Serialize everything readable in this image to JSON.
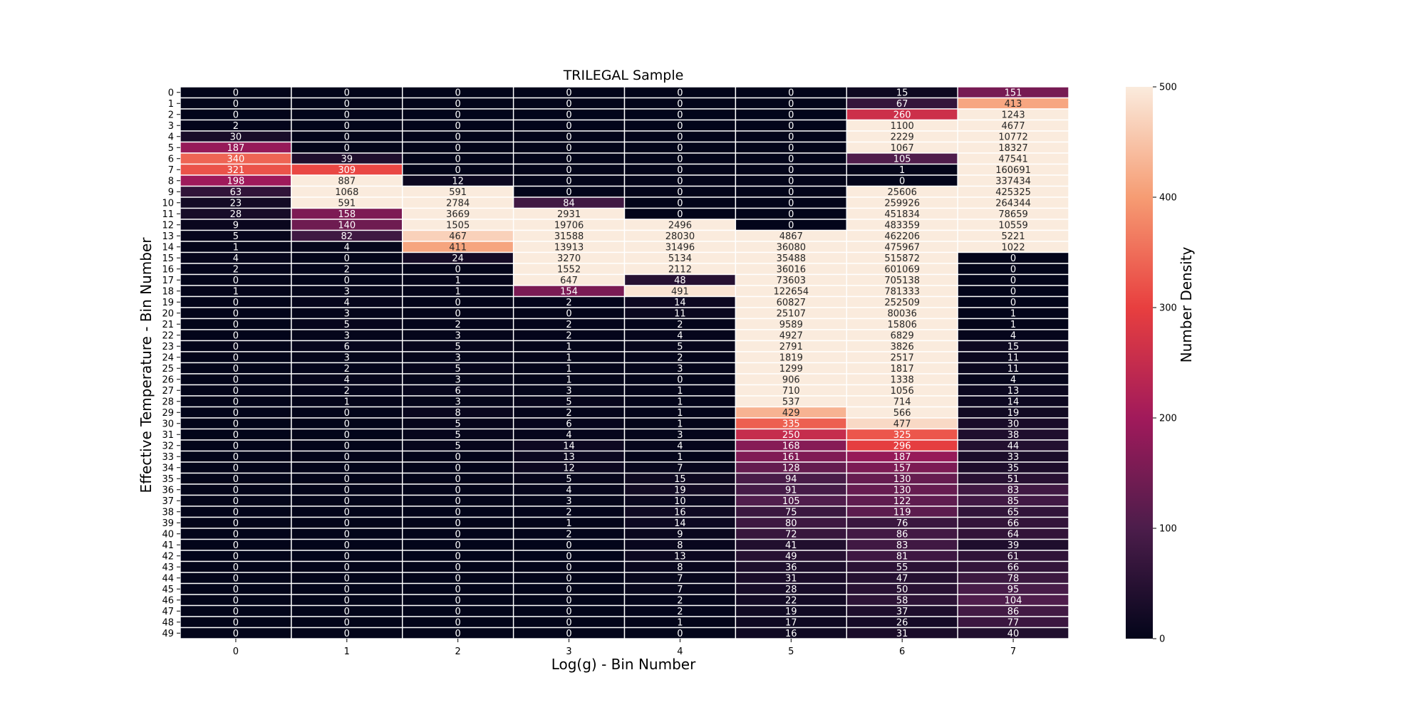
{
  "chart_data": {
    "type": "heatmap",
    "title": "TRILEGAL Sample",
    "xlabel": "Log(g) - Bin Number",
    "ylabel": "Effective Temperature - Bin Number",
    "x_categories": [
      "0",
      "1",
      "2",
      "3",
      "4",
      "5",
      "6",
      "7"
    ],
    "y_categories": [
      "0",
      "1",
      "2",
      "3",
      "4",
      "5",
      "6",
      "7",
      "8",
      "9",
      "10",
      "11",
      "12",
      "13",
      "14",
      "15",
      "16",
      "17",
      "18",
      "19",
      "20",
      "21",
      "22",
      "23",
      "24",
      "25",
      "26",
      "27",
      "28",
      "29",
      "30",
      "31",
      "32",
      "33",
      "34",
      "35",
      "36",
      "37",
      "38",
      "39",
      "40",
      "41",
      "42",
      "43",
      "44",
      "45",
      "46",
      "47",
      "48",
      "49"
    ],
    "values": [
      [
        0,
        0,
        0,
        0,
        0,
        0,
        15,
        151
      ],
      [
        0,
        0,
        0,
        0,
        0,
        0,
        67,
        413
      ],
      [
        0,
        0,
        0,
        0,
        0,
        0,
        260,
        1243
      ],
      [
        2,
        0,
        0,
        0,
        0,
        0,
        1100,
        4677
      ],
      [
        30,
        0,
        0,
        0,
        0,
        0,
        2229,
        10772
      ],
      [
        187,
        0,
        0,
        0,
        0,
        0,
        1067,
        18327
      ],
      [
        340,
        39,
        0,
        0,
        0,
        0,
        105,
        47541
      ],
      [
        321,
        309,
        0,
        0,
        0,
        0,
        1,
        160691
      ],
      [
        198,
        887,
        12,
        0,
        0,
        0,
        0,
        337434
      ],
      [
        63,
        1068,
        591,
        0,
        0,
        0,
        25606,
        425325
      ],
      [
        23,
        591,
        2784,
        84,
        0,
        0,
        259926,
        264344
      ],
      [
        28,
        158,
        3669,
        2931,
        0,
        0,
        451834,
        78659
      ],
      [
        9,
        140,
        1505,
        19706,
        2496,
        0,
        483359,
        10559
      ],
      [
        5,
        82,
        467,
        31588,
        28030,
        4867,
        462206,
        5221
      ],
      [
        1,
        4,
        411,
        13913,
        31496,
        36080,
        475967,
        1022
      ],
      [
        4,
        0,
        24,
        3270,
        5134,
        35488,
        515872,
        0
      ],
      [
        2,
        2,
        0,
        1552,
        2112,
        36016,
        601069,
        0
      ],
      [
        0,
        0,
        1,
        647,
        48,
        73603,
        705138,
        0
      ],
      [
        1,
        3,
        1,
        154,
        491,
        122654,
        781333,
        0
      ],
      [
        0,
        4,
        0,
        2,
        14,
        60827,
        252509,
        0
      ],
      [
        0,
        3,
        0,
        0,
        11,
        25107,
        80036,
        1
      ],
      [
        0,
        5,
        2,
        2,
        2,
        9589,
        15806,
        1
      ],
      [
        0,
        3,
        3,
        2,
        4,
        4927,
        6829,
        4
      ],
      [
        0,
        6,
        5,
        1,
        5,
        2791,
        3826,
        15
      ],
      [
        0,
        3,
        3,
        1,
        2,
        1819,
        2517,
        11
      ],
      [
        0,
        2,
        5,
        1,
        3,
        1299,
        1817,
        11
      ],
      [
        0,
        4,
        3,
        1,
        0,
        906,
        1338,
        4
      ],
      [
        0,
        2,
        6,
        3,
        1,
        710,
        1056,
        13
      ],
      [
        0,
        1,
        3,
        5,
        1,
        537,
        714,
        14
      ],
      [
        0,
        0,
        8,
        2,
        1,
        429,
        566,
        19
      ],
      [
        0,
        0,
        5,
        6,
        1,
        335,
        477,
        30
      ],
      [
        0,
        0,
        5,
        4,
        3,
        250,
        325,
        38
      ],
      [
        0,
        0,
        5,
        14,
        4,
        168,
        296,
        44
      ],
      [
        0,
        0,
        0,
        13,
        1,
        161,
        187,
        33
      ],
      [
        0,
        0,
        0,
        12,
        7,
        128,
        157,
        35
      ],
      [
        0,
        0,
        0,
        5,
        15,
        94,
        130,
        51
      ],
      [
        0,
        0,
        0,
        4,
        19,
        91,
        130,
        83
      ],
      [
        0,
        0,
        0,
        3,
        10,
        105,
        122,
        85
      ],
      [
        0,
        0,
        0,
        2,
        16,
        75,
        119,
        65
      ],
      [
        0,
        0,
        0,
        1,
        14,
        80,
        76,
        66
      ],
      [
        0,
        0,
        0,
        2,
        9,
        72,
        86,
        64
      ],
      [
        0,
        0,
        0,
        0,
        8,
        41,
        83,
        39
      ],
      [
        0,
        0,
        0,
        0,
        13,
        49,
        81,
        61
      ],
      [
        0,
        0,
        0,
        0,
        8,
        36,
        55,
        66
      ],
      [
        0,
        0,
        0,
        0,
        7,
        31,
        47,
        78
      ],
      [
        0,
        0,
        0,
        0,
        7,
        28,
        50,
        95
      ],
      [
        0,
        0,
        0,
        0,
        2,
        22,
        58,
        104
      ],
      [
        0,
        0,
        0,
        0,
        2,
        19,
        37,
        86
      ],
      [
        0,
        0,
        0,
        0,
        1,
        17,
        26,
        77
      ],
      [
        0,
        0,
        0,
        0,
        0,
        16,
        31,
        40
      ]
    ],
    "colorbar": {
      "label": "Number Density",
      "vmin": 0,
      "vmax": 500,
      "ticks": [
        "0",
        "100",
        "200",
        "300",
        "400",
        "500"
      ],
      "colormap_stops": [
        "#03051a",
        "#4c1d4b",
        "#a11a5b",
        "#e83f3f",
        "#f69c73",
        "#faebdd"
      ]
    },
    "grid": true,
    "cell_border_color": "#ffffff"
  }
}
